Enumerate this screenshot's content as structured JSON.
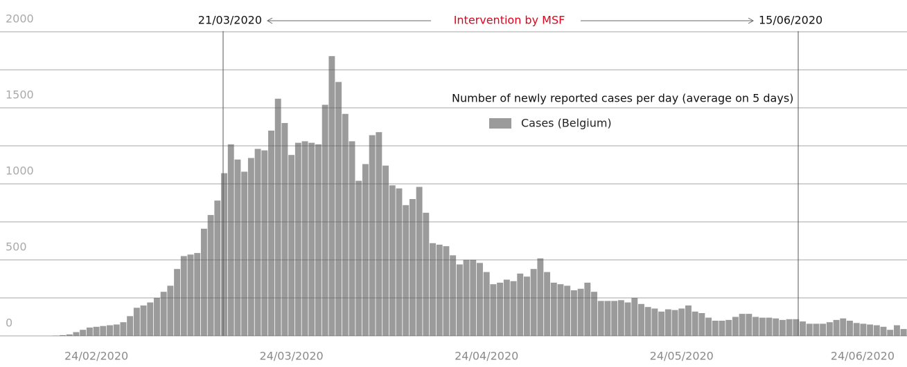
{
  "chart_data": {
    "type": "bar",
    "legend_title": "Number of newly reported cases per day (average on 5 days)",
    "annotation": {
      "start": "21/03/2020",
      "label": "Intervention by MSF",
      "end": "15/06/2020",
      "color": "#e3001b"
    },
    "categories": [
      null,
      null,
      null,
      null,
      null,
      null,
      null,
      null,
      null,
      null,
      null,
      null,
      null,
      "24/02/2020",
      null,
      null,
      null,
      null,
      null,
      null,
      null,
      null,
      null,
      null,
      null,
      null,
      null,
      null,
      null,
      null,
      null,
      null,
      null,
      null,
      null,
      null,
      null,
      null,
      null,
      null,
      null,
      null,
      "24/03/2020",
      null,
      null,
      null,
      null,
      null,
      null,
      null,
      null,
      null,
      null,
      null,
      null,
      null,
      null,
      null,
      null,
      null,
      null,
      null,
      null,
      null,
      null,
      null,
      null,
      null,
      null,
      null,
      null,
      "24/04/2020",
      null,
      null,
      null,
      null,
      null,
      null,
      null,
      null,
      null,
      null,
      null,
      null,
      null,
      null,
      null,
      null,
      null,
      null,
      null,
      null,
      null,
      null,
      null,
      null,
      null,
      null,
      null,
      null,
      "24/05/2020",
      null,
      null,
      null,
      null,
      null,
      null,
      null,
      null,
      null,
      null,
      null,
      null,
      null,
      null,
      null,
      null,
      null,
      null,
      null,
      null,
      null,
      null,
      null,
      null,
      null,
      null,
      null,
      null,
      "24/06/2020",
      null,
      null,
      null,
      null
    ],
    "series": [
      {
        "name": "Cases (Belgium)",
        "color": "#9b9b9b",
        "values": [
          0,
          0,
          0,
          0,
          0,
          0,
          0,
          2,
          5,
          10,
          25,
          40,
          55,
          60,
          65,
          70,
          75,
          90,
          130,
          185,
          200,
          220,
          250,
          290,
          330,
          440,
          525,
          535,
          545,
          705,
          795,
          890,
          1070,
          1260,
          1160,
          1080,
          1170,
          1230,
          1220,
          1350,
          1560,
          1400,
          1190,
          1270,
          1280,
          1270,
          1260,
          1520,
          1840,
          1670,
          1460,
          1280,
          1020,
          1130,
          1320,
          1340,
          1120,
          990,
          970,
          860,
          900,
          980,
          810,
          610,
          600,
          590,
          530,
          470,
          500,
          500,
          480,
          420,
          340,
          350,
          370,
          360,
          410,
          390,
          440,
          510,
          420,
          350,
          340,
          330,
          300,
          310,
          350,
          290,
          230,
          230,
          230,
          235,
          220,
          250,
          210,
          190,
          180,
          160,
          175,
          170,
          180,
          200,
          160,
          150,
          120,
          100,
          100,
          105,
          125,
          145,
          145,
          125,
          120,
          120,
          115,
          105,
          110,
          110,
          95,
          80,
          80,
          80,
          90,
          105,
          115,
          100,
          85,
          80,
          75,
          70,
          60,
          40,
          70,
          45
        ]
      }
    ],
    "ylim": [
      0,
      2000
    ],
    "yticks": [
      0,
      500,
      1000,
      1500,
      2000
    ],
    "minor_yticks": [
      250,
      750,
      1250,
      1750
    ],
    "grid": true
  }
}
